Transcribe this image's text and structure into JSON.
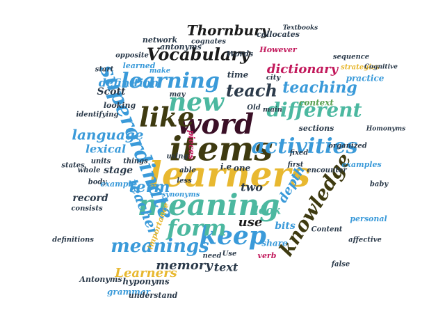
{
  "palette": {
    "navy": "#2b3a4a",
    "blue": "#3a9ad9",
    "teal": "#4cb8a0",
    "gold": "#e8b830",
    "olive": "#3e3a10",
    "maroon": "#3a0f26",
    "pink": "#c2185b",
    "black": "#1a1a1a",
    "green": "#5aa050",
    "sky": "#2aa2c8"
  },
  "words": [
    {
      "text": "learners",
      "c": "gold"
    },
    {
      "text": "items",
      "c": "olive"
    },
    {
      "text": "meaning",
      "c": "teal"
    },
    {
      "text": "word",
      "c": "maroon"
    },
    {
      "text": "like",
      "c": "olive"
    },
    {
      "text": "new",
      "c": "teal"
    },
    {
      "text": "keep",
      "c": "blue"
    },
    {
      "text": "activities",
      "c": "blue"
    },
    {
      "text": "superordinate",
      "c": "blue"
    },
    {
      "text": "knowledge",
      "c": "olive"
    },
    {
      "text": "form",
      "c": "teal"
    },
    {
      "text": "learning",
      "c": "blue"
    },
    {
      "text": "Vocabulary",
      "c": "black"
    },
    {
      "text": "different",
      "c": "teal"
    },
    {
      "text": "meanings",
      "c": "blue"
    },
    {
      "text": "teach",
      "c": "navy"
    },
    {
      "text": "teaching",
      "c": "blue"
    },
    {
      "text": "language",
      "c": "blue"
    },
    {
      "text": "Thornbury",
      "c": "black"
    },
    {
      "text": "teacher",
      "c": "blue"
    },
    {
      "text": "term",
      "c": "blue"
    },
    {
      "text": "Learners",
      "c": "gold"
    },
    {
      "text": "memory",
      "c": "navy"
    },
    {
      "text": "dictionary",
      "c": "pink"
    },
    {
      "text": "depth",
      "c": "blue"
    },
    {
      "text": "text",
      "c": "navy"
    },
    {
      "text": "lexical",
      "c": "blue"
    },
    {
      "text": "definition",
      "c": "blue"
    },
    {
      "text": "look",
      "c": "teal"
    },
    {
      "text": "two",
      "c": "navy"
    },
    {
      "text": "bits",
      "c": "blue"
    },
    {
      "text": "use",
      "c": "black"
    },
    {
      "text": "record",
      "c": "navy"
    },
    {
      "text": "stage",
      "c": "navy"
    },
    {
      "text": "Scott",
      "c": "navy"
    },
    {
      "text": "pieces",
      "c": "pink"
    },
    {
      "text": "context",
      "c": "green"
    },
    {
      "text": "one",
      "c": "navy"
    },
    {
      "text": "i.e",
      "c": "navy"
    },
    {
      "text": "time",
      "c": "navy"
    },
    {
      "text": "share",
      "c": "blue"
    },
    {
      "text": "grammar",
      "c": "blue"
    },
    {
      "text": "hyponyms",
      "c": "navy"
    },
    {
      "text": "Antonyms",
      "c": "navy"
    },
    {
      "text": "collocates",
      "c": "navy"
    },
    {
      "text": "antonyms",
      "c": "navy"
    },
    {
      "text": "network",
      "c": "navy"
    },
    {
      "text": "Words",
      "c": "navy"
    },
    {
      "text": "However",
      "c": "pink"
    },
    {
      "text": "learned",
      "c": "blue"
    },
    {
      "text": "cognates",
      "c": "navy"
    },
    {
      "text": "opposite",
      "c": "navy"
    },
    {
      "text": "start",
      "c": "navy"
    },
    {
      "text": "make",
      "c": "blue"
    },
    {
      "text": "city",
      "c": "navy"
    },
    {
      "text": "practice",
      "c": "blue"
    },
    {
      "text": "strategies",
      "c": "gold"
    },
    {
      "text": "looking",
      "c": "navy"
    },
    {
      "text": "identifying",
      "c": "navy"
    },
    {
      "text": "sections",
      "c": "navy"
    },
    {
      "text": "things",
      "c": "navy"
    },
    {
      "text": "able",
      "c": "navy"
    },
    {
      "text": "less",
      "c": "navy"
    },
    {
      "text": "units",
      "c": "navy"
    },
    {
      "text": "whole",
      "c": "navy"
    },
    {
      "text": "body",
      "c": "navy"
    },
    {
      "text": "example",
      "c": "blue"
    },
    {
      "text": "consists",
      "c": "navy"
    },
    {
      "text": "synonyms",
      "c": "blue"
    },
    {
      "text": "importance",
      "c": "gold"
    },
    {
      "text": "encounter",
      "c": "navy"
    },
    {
      "text": "examples",
      "c": "blue"
    },
    {
      "text": "first",
      "c": "navy"
    },
    {
      "text": "fixed",
      "c": "navy"
    },
    {
      "text": "organized",
      "c": "navy"
    },
    {
      "text": "personal",
      "c": "blue"
    },
    {
      "text": "affective",
      "c": "navy"
    },
    {
      "text": "Content",
      "c": "navy"
    },
    {
      "text": "false",
      "c": "navy"
    },
    {
      "text": "verb",
      "c": "pink"
    },
    {
      "text": "Use",
      "c": "navy"
    },
    {
      "text": "need",
      "c": "navy"
    },
    {
      "text": "understand",
      "c": "navy"
    },
    {
      "text": "definitions",
      "c": "navy"
    },
    {
      "text": "states",
      "c": "navy"
    },
    {
      "text": "Old",
      "c": "navy"
    },
    {
      "text": "main",
      "c": "navy"
    },
    {
      "text": "baby",
      "c": "navy"
    },
    {
      "text": "sequence",
      "c": "navy"
    },
    {
      "text": "Textbooks",
      "c": "navy"
    },
    {
      "text": "Cognitive",
      "c": "navy"
    },
    {
      "text": "Homonyms",
      "c": "navy"
    },
    {
      "text": "may",
      "c": "navy"
    },
    {
      "text": "using",
      "c": "navy"
    }
  ]
}
